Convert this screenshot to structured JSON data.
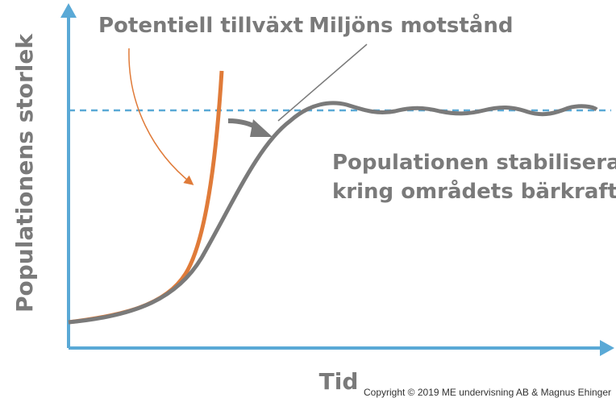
{
  "labels": {
    "potential": "Potentiell tillväxt",
    "resistance": "Miljöns motstånd",
    "stabilize_line1": "Populationen stabiliseras",
    "stabilize_line2": "kring områdets bärkraft"
  },
  "axes": {
    "y_label": "Populationens storlek",
    "x_label": "Tid"
  },
  "footer": {
    "copyright": "Copyright © 2019 ME undervisning AB & Magnus Ehinger"
  }
}
